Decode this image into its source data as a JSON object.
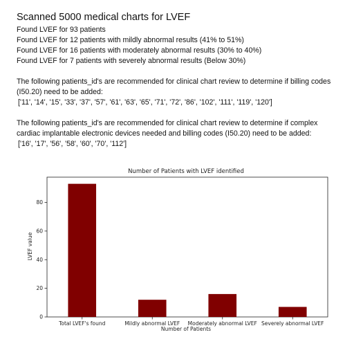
{
  "report": {
    "title": "Scanned 5000 medical charts for LVEF",
    "summary_lines": [
      "Found LVEF for 93 patients",
      "Found LVEF for 12 patients with mildly abnormal results (41% to 51%)",
      "Found LVEF for 16 patients with moderately abnormal results (30% to 40%)",
      "Found LVEF for 7 patients with severely abnormal results (Below 30%)"
    ],
    "billing_review": {
      "text": "The following patients_id's are recommended for clinical chart review to determine if billing codes (I50.20) need to be added:",
      "ids": "['11', '14', '15', '33', '37', '57', '61', '63', '65', '71', '72', '86', '102', '111', '119', '120']"
    },
    "device_review": {
      "text": "The following patients_id's are recommended for clinical chart review to determine if complex cardiac implantable electronic devices needed and billing codes (I50.20) need to be added:",
      "ids": "['16', '17', '56', '58', '60', '70', '112']"
    }
  },
  "chart_data": {
    "type": "bar",
    "title": "Number of Patients with LVEF identified",
    "xlabel": "Number of Patients",
    "ylabel": "LVEF value",
    "categories": [
      "Total LVEF's found",
      "Mildly abnormal LVEF",
      "Moderately abnormal LVEF",
      "Severely abnormal LVEF"
    ],
    "values": [
      93,
      12,
      16,
      7
    ],
    "ylim": [
      0,
      97.65
    ],
    "yticks": [
      0,
      20,
      40,
      60,
      80
    ],
    "bar_color": "#800000",
    "grid": false,
    "legend": "none"
  }
}
